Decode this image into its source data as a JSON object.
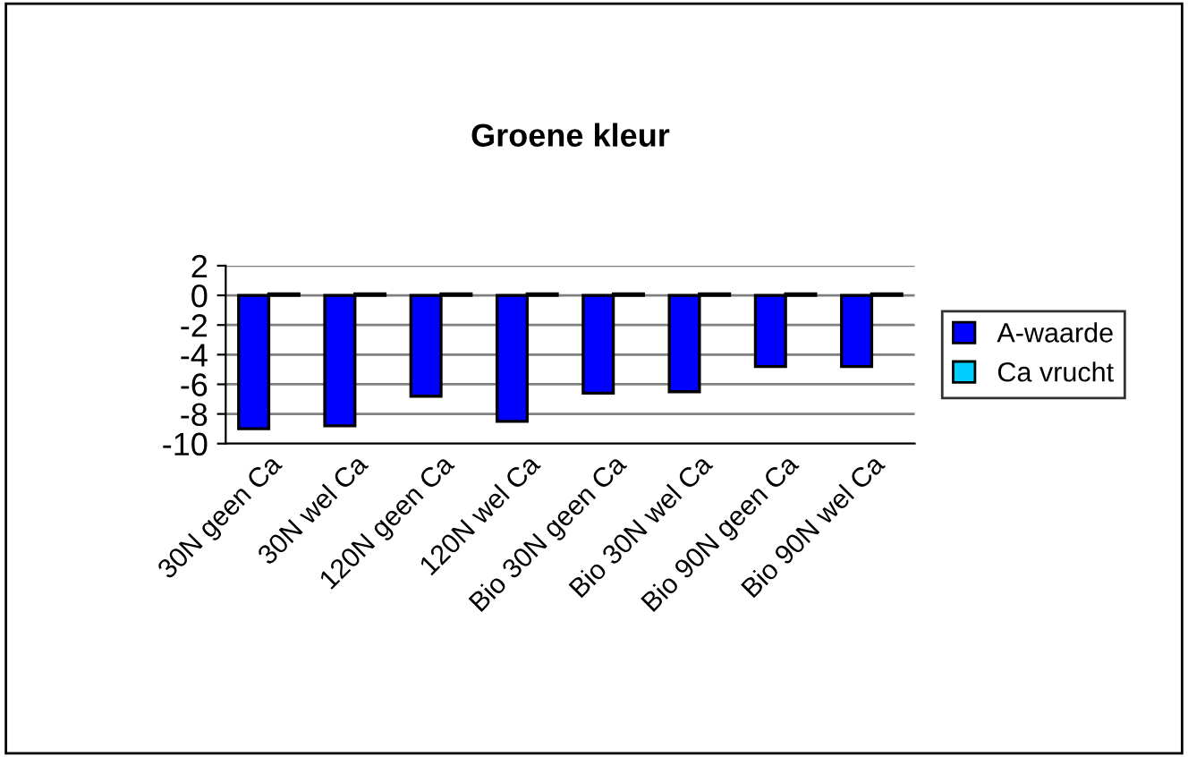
{
  "chart_data": {
    "type": "bar",
    "title": "Groene kleur",
    "categories": [
      "30N geen Ca",
      "30N wel Ca",
      "120N geen Ca",
      "120N wel Ca",
      "Bio 30N geen Ca",
      "Bio 30N wel Ca",
      "Bio 90N geen Ca",
      "Bio 90N wel Ca"
    ],
    "series": [
      {
        "name": "A-waarde",
        "color": "#0000ff",
        "values": [
          -9.0,
          -8.8,
          -6.8,
          -8.5,
          -6.6,
          -6.5,
          -4.8,
          -4.8
        ]
      },
      {
        "name": "Ca vrucht",
        "color": "#00ccff",
        "values": [
          0.1,
          0.1,
          0.1,
          0.1,
          0.1,
          0.1,
          0.1,
          0.1
        ]
      }
    ],
    "ylim": [
      -10,
      2
    ],
    "yticks": [
      -10,
      -8,
      -6,
      -4,
      -2,
      0,
      2
    ],
    "grid": "y",
    "legend": "right"
  }
}
